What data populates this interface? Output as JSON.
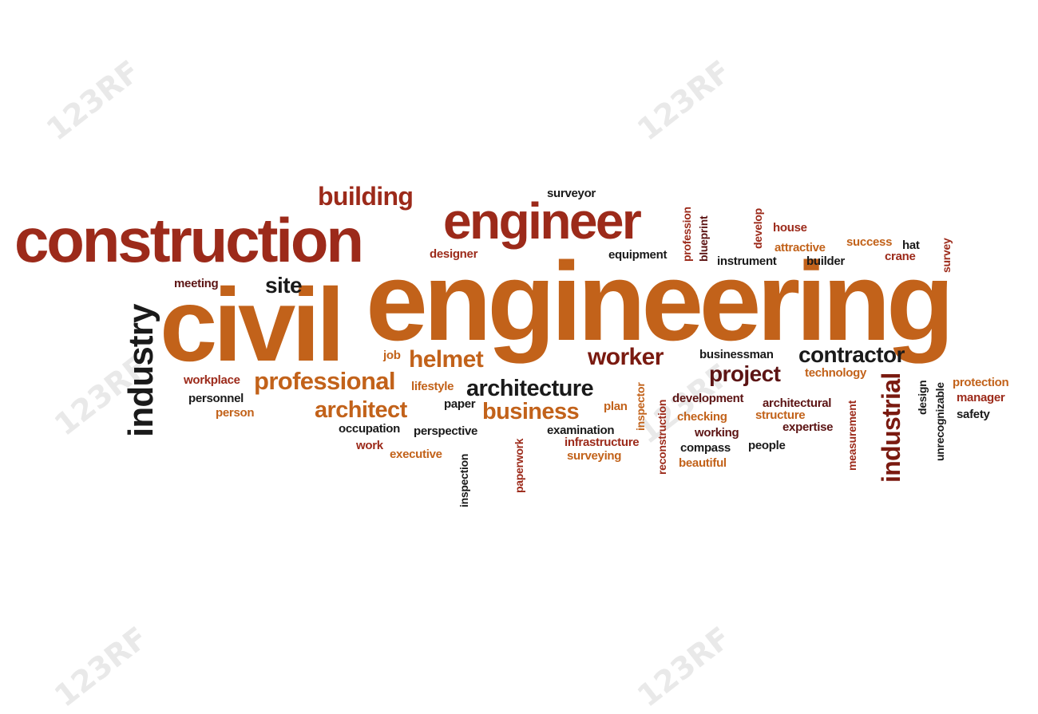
{
  "watermark": {
    "text": "123RF",
    "color": "#e6e6e6"
  },
  "colors": {
    "rust": "#9c2a1a",
    "orange": "#c2621a",
    "dark": "#1a1a1a",
    "maroon": "#5c1414",
    "deep_red": "#7a1a10"
  },
  "words": [
    "civil",
    "engineering",
    "construction",
    "engineer",
    "building",
    "industry",
    "site",
    "meeting",
    "designer",
    "surveyor",
    "profession",
    "blueprint",
    "develop",
    "house",
    "attractive",
    "success",
    "hat",
    "crane",
    "survey",
    "equipment",
    "instrument",
    "builder",
    "helmet",
    "job",
    "worker",
    "businessman",
    "contractor",
    "project",
    "technology",
    "industrial",
    "design",
    "unrecognizable",
    "protection",
    "manager",
    "safety",
    "workplace",
    "professional",
    "lifestyle",
    "architecture",
    "inspector",
    "reconstruction",
    "development",
    "architectural",
    "structure",
    "measurement",
    "personnel",
    "person",
    "architect",
    "paper",
    "plan",
    "business",
    "checking",
    "expertise",
    "occupation",
    "perspective",
    "examination",
    "working",
    "work",
    "executive",
    "infrastructure",
    "compass",
    "people",
    "surveying",
    "beautiful",
    "inspection",
    "paperwork"
  ]
}
